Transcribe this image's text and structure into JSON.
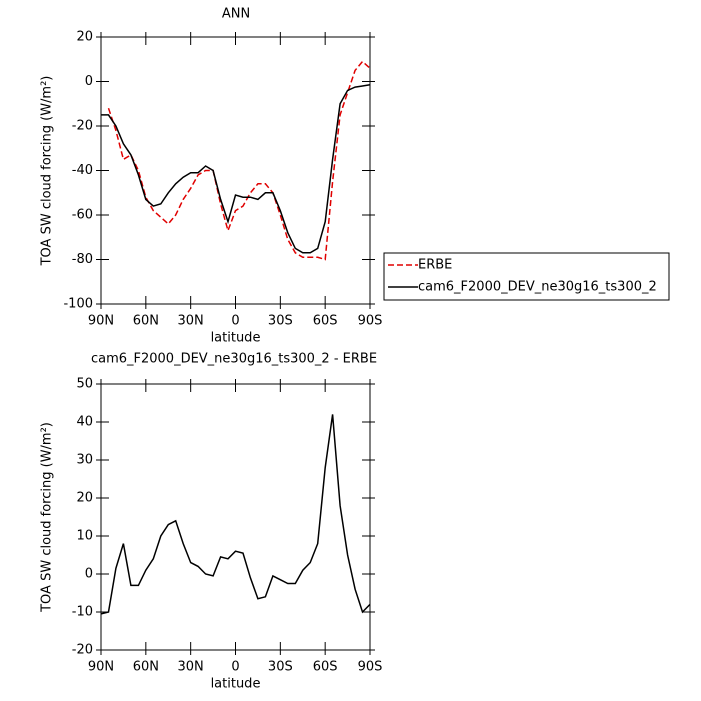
{
  "chart_data": [
    {
      "type": "line",
      "title": "ANN",
      "xlabel": "latitude",
      "ylabel": "TOA SW cloud forcing (W/m²)",
      "x": [
        90,
        85,
        80,
        75,
        70,
        65,
        60,
        55,
        50,
        45,
        40,
        35,
        30,
        25,
        20,
        15,
        10,
        5,
        0,
        -5,
        -10,
        -15,
        -20,
        -25,
        -30,
        -35,
        -40,
        -45,
        -50,
        -55,
        -60,
        -65,
        -70,
        -75,
        -80,
        -85,
        -90
      ],
      "series": [
        {
          "name": "ERBE",
          "color": "#e00000",
          "dashed": true,
          "values": [
            null,
            -12,
            -22,
            -35,
            -33,
            -40,
            -52,
            -58,
            -61,
            -64,
            -60,
            -53,
            -48,
            -42,
            -40,
            -40,
            -55,
            -67,
            -58,
            -56,
            -50,
            -46,
            -46,
            -50,
            -60,
            -71,
            -77,
            -79,
            -79,
            -79,
            -80,
            -45,
            -15,
            -5,
            5,
            9,
            6
          ]
        },
        {
          "name": "cam6_F2000_DEV_ne30g16_ts300_2",
          "color": "#000000",
          "dashed": false,
          "values": [
            -15,
            -15,
            -20,
            -28,
            -33,
            -42,
            -53,
            -56,
            -55,
            -50,
            -46,
            -43,
            -41,
            -41,
            -38,
            -40,
            -53,
            -63,
            -51,
            -52,
            -52,
            -53,
            -50,
            -50,
            -58,
            -68,
            -75,
            -77,
            -77,
            -75,
            -63,
            -35,
            -10,
            -4,
            -2.5,
            -2,
            -1.5
          ]
        }
      ],
      "xlim": [
        90,
        -90
      ],
      "xticks": [
        {
          "value": 90,
          "label": "90N"
        },
        {
          "value": 60,
          "label": "60N"
        },
        {
          "value": 30,
          "label": "30N"
        },
        0,
        {
          "value": -30,
          "label": "30S"
        },
        {
          "value": -60,
          "label": "60S"
        },
        {
          "value": -90,
          "label": "90S"
        }
      ],
      "ylim": [
        -100,
        20
      ],
      "yticks": [
        -100,
        -80,
        -60,
        -40,
        -20,
        0,
        20
      ],
      "legend": "right"
    },
    {
      "type": "line",
      "title": "cam6_F2000_DEV_ne30g16_ts300_2 - ERBE",
      "xlabel": "latitude",
      "ylabel": "TOA SW cloud forcing (W/m²)",
      "x": [
        90,
        85,
        80,
        75,
        70,
        65,
        60,
        55,
        50,
        45,
        40,
        35,
        30,
        25,
        20,
        15,
        10,
        5,
        0,
        -5,
        -10,
        -15,
        -20,
        -25,
        -30,
        -35,
        -40,
        -45,
        -50,
        -55,
        -60,
        -65,
        -70,
        -75,
        -80,
        -85,
        -90
      ],
      "series": [
        {
          "color": "#000000",
          "dashed": false,
          "values": [
            -10.5,
            -10,
            1.5,
            8,
            -3,
            -3,
            1,
            4,
            10,
            13,
            14,
            8,
            3,
            2,
            0,
            -0.5,
            4.5,
            4,
            6,
            5.5,
            -1,
            -6.5,
            -6,
            -0.5,
            -1.5,
            -2.5,
            -2.5,
            1,
            3,
            8,
            28,
            42,
            18,
            5,
            -4,
            -10,
            -8
          ]
        }
      ],
      "xlim": [
        90,
        -90
      ],
      "xticks": [
        {
          "value": 90,
          "label": "90N"
        },
        {
          "value": 60,
          "label": "60N"
        },
        {
          "value": 30,
          "label": "30N"
        },
        0,
        {
          "value": -30,
          "label": "30S"
        },
        {
          "value": -60,
          "label": "60S"
        },
        {
          "value": -90,
          "label": "90S"
        }
      ],
      "ylim": [
        -20,
        50
      ],
      "yticks": [
        -20,
        -10,
        0,
        10,
        20,
        30,
        40,
        50
      ]
    }
  ]
}
